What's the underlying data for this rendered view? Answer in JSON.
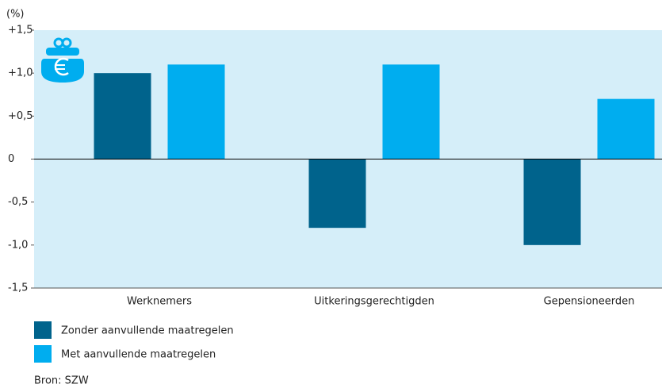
{
  "chart_data": {
    "type": "bar",
    "unit_label": "(%)",
    "categories": [
      "Werknemers",
      "Uitkeringsgerechtigden",
      "Gepensioneerden"
    ],
    "series": [
      {
        "name": "Zonder aanvullende maatregelen",
        "color": "#00638c",
        "values": [
          1.0,
          -0.8,
          -1.0
        ]
      },
      {
        "name": "Met aanvullende maatregelen",
        "color": "#00adef",
        "values": [
          1.1,
          1.1,
          0.7
        ]
      }
    ],
    "ylim": [
      -1.5,
      1.5
    ],
    "yticks": [
      {
        "value": -1.5,
        "label": "-1,5"
      },
      {
        "value": -1.0,
        "label": "-1,0"
      },
      {
        "value": -0.5,
        "label": "-0,5"
      },
      0,
      {
        "value": 0.5,
        "label": "+0,5"
      },
      {
        "value": 1.0,
        "label": "+1,0"
      },
      {
        "value": 1.5,
        "label": "+1,5"
      }
    ],
    "source": "Bron: SZW"
  }
}
